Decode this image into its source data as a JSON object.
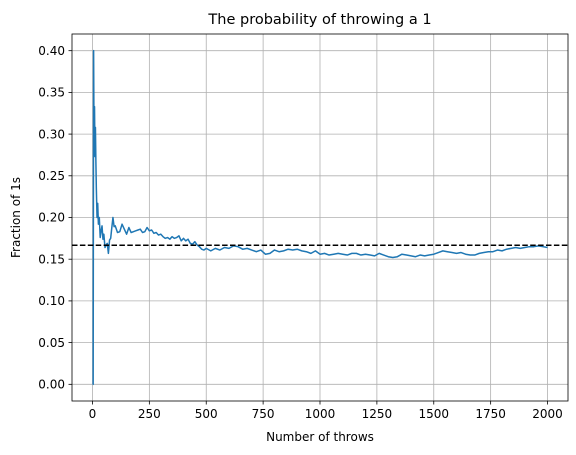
{
  "chart_data": {
    "type": "line",
    "title": "The probability of throwing a 1",
    "xlabel": "Number of throws",
    "ylabel": "Fraction of 1s",
    "xlim": [
      -90,
      2090
    ],
    "ylim": [
      -0.02,
      0.42
    ],
    "xticks": [
      0,
      250,
      500,
      750,
      1000,
      1250,
      1500,
      1750,
      2000
    ],
    "xtick_labels": [
      "0",
      "250",
      "500",
      "750",
      "1000",
      "1250",
      "1500",
      "1750",
      "2000"
    ],
    "yticks": [
      0.0,
      0.05,
      0.1,
      0.15,
      0.2,
      0.25,
      0.3,
      0.35,
      0.4
    ],
    "ytick_labels": [
      "0.00",
      "0.05",
      "0.10",
      "0.15",
      "0.20",
      "0.25",
      "0.30",
      "0.35",
      "0.40"
    ],
    "grid": true,
    "series": [
      {
        "color": "#1f77b4",
        "style": "solid",
        "x": [
          1,
          3,
          5,
          7,
          9,
          11,
          13,
          15,
          17,
          20,
          23,
          26,
          30,
          34,
          38,
          42,
          46,
          50,
          55,
          60,
          65,
          70,
          75,
          80,
          85,
          90,
          95,
          100,
          110,
          120,
          130,
          140,
          150,
          160,
          170,
          180,
          190,
          200,
          210,
          220,
          230,
          240,
          250,
          260,
          270,
          280,
          290,
          300,
          310,
          320,
          330,
          340,
          350,
          360,
          370,
          380,
          390,
          400,
          410,
          420,
          430,
          440,
          450,
          460,
          470,
          480,
          490,
          500,
          520,
          540,
          560,
          580,
          600,
          620,
          640,
          660,
          680,
          700,
          720,
          740,
          760,
          780,
          800,
          820,
          840,
          860,
          880,
          900,
          920,
          940,
          960,
          980,
          1000,
          1020,
          1040,
          1060,
          1080,
          1100,
          1120,
          1140,
          1160,
          1180,
          1200,
          1220,
          1240,
          1260,
          1280,
          1300,
          1320,
          1340,
          1360,
          1380,
          1400,
          1420,
          1440,
          1460,
          1480,
          1500,
          1520,
          1540,
          1560,
          1580,
          1600,
          1620,
          1640,
          1660,
          1680,
          1700,
          1720,
          1740,
          1760,
          1780,
          1800,
          1820,
          1840,
          1860,
          1880,
          1900,
          1920,
          1940,
          1960,
          1980,
          2000
        ],
        "values": [
          0.0,
          0.0,
          0.4,
          0.286,
          0.333,
          0.273,
          0.308,
          0.267,
          0.235,
          0.2,
          0.217,
          0.192,
          0.2,
          0.176,
          0.184,
          0.19,
          0.174,
          0.18,
          0.164,
          0.167,
          0.169,
          0.157,
          0.173,
          0.175,
          0.188,
          0.2,
          0.189,
          0.19,
          0.182,
          0.183,
          0.192,
          0.186,
          0.18,
          0.188,
          0.182,
          0.183,
          0.184,
          0.185,
          0.186,
          0.182,
          0.183,
          0.188,
          0.184,
          0.185,
          0.181,
          0.182,
          0.179,
          0.18,
          0.177,
          0.175,
          0.176,
          0.174,
          0.177,
          0.175,
          0.176,
          0.178,
          0.172,
          0.175,
          0.172,
          0.174,
          0.169,
          0.168,
          0.171,
          0.167,
          0.165,
          0.162,
          0.161,
          0.163,
          0.16,
          0.163,
          0.161,
          0.164,
          0.163,
          0.166,
          0.165,
          0.162,
          0.163,
          0.161,
          0.159,
          0.161,
          0.156,
          0.157,
          0.161,
          0.159,
          0.16,
          0.162,
          0.161,
          0.162,
          0.16,
          0.159,
          0.157,
          0.16,
          0.156,
          0.157,
          0.155,
          0.156,
          0.157,
          0.156,
          0.155,
          0.157,
          0.157,
          0.155,
          0.156,
          0.155,
          0.154,
          0.157,
          0.155,
          0.153,
          0.152,
          0.153,
          0.156,
          0.155,
          0.154,
          0.153,
          0.155,
          0.154,
          0.155,
          0.156,
          0.158,
          0.16,
          0.159,
          0.158,
          0.157,
          0.158,
          0.156,
          0.155,
          0.155,
          0.157,
          0.158,
          0.159,
          0.159,
          0.161,
          0.16,
          0.162,
          0.163,
          0.164,
          0.163,
          0.164,
          0.165,
          0.165,
          0.166,
          0.165,
          0.164
        ]
      }
    ],
    "reference_lines": [
      {
        "y": 0.1667,
        "color": "#000000",
        "style": "dashed"
      }
    ]
  }
}
